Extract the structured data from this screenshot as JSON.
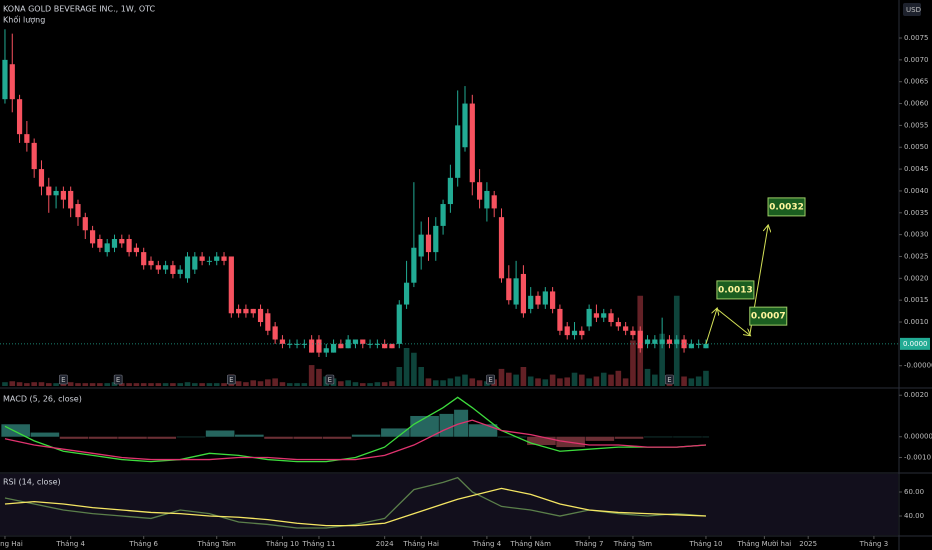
{
  "chart_data": [
    {
      "type": "candlestick",
      "title": "KONA GOLD BEVERAGE INC., 1W, OTC",
      "volume_label": "Khối lượng",
      "currency": "USD",
      "up_color": "#22ab94",
      "down_color": "#f7525f",
      "xlim": [
        -0.68,
        122.3
      ],
      "ylim": [
        -0.00051,
        0.00837
      ],
      "yticks": [
        0.0075,
        {
          "value": 0.007,
          "label": "0.0070"
        },
        0.0065,
        {
          "value": 0.006,
          "label": "0.0060"
        },
        0.0055,
        {
          "value": 0.005,
          "label": "0.0050"
        },
        0.0045,
        {
          "value": 0.004,
          "label": "0.0040"
        },
        0.0035,
        {
          "value": 0.003,
          "label": "0.0030"
        },
        0.0025,
        {
          "value": 0.002,
          "label": "0.0020"
        },
        0.0015,
        {
          "value": 0.001,
          "label": "0.0010"
        },
        {
          "value": 0,
          "label": "-0.000000"
        }
      ],
      "xticks": [
        {
          "value": 0,
          "label": "Tháng Hai"
        },
        {
          "value": 9,
          "label": "Tháng 4"
        },
        {
          "value": 19,
          "label": "Tháng 6"
        },
        {
          "value": 29,
          "label": "Tháng Tám"
        },
        {
          "value": 38,
          "label": "Tháng 10"
        },
        {
          "value": 43,
          "label": "Tháng 11"
        },
        {
          "value": 52,
          "label": "2024"
        },
        {
          "value": 57,
          "label": "Tháng Hai"
        },
        {
          "value": 66,
          "label": "Tháng 4"
        },
        {
          "value": 72,
          "label": "Tháng Năm"
        },
        {
          "value": 80,
          "label": "Tháng 7"
        },
        {
          "value": 86,
          "label": "Tháng Tám"
        },
        {
          "value": 96,
          "label": "Tháng 10"
        },
        {
          "value": 104,
          "label": "Tháng Mười hai"
        },
        {
          "value": 110,
          "label": "2025"
        },
        {
          "value": 119,
          "label": "Tháng 3"
        }
      ],
      "ohlc": [
        [
          0.0061,
          0.0077,
          0.006,
          0.007
        ],
        [
          0.0069,
          0.0076,
          0.0058,
          0.0061
        ],
        [
          0.0061,
          0.0062,
          0.0051,
          0.0053
        ],
        [
          0.0053,
          0.0056,
          0.0049,
          0.0051
        ],
        [
          0.0051,
          0.0052,
          0.0043,
          0.0045
        ],
        [
          0.0045,
          0.0047,
          0.0039,
          0.0041
        ],
        [
          0.0041,
          0.0043,
          0.0035,
          0.0039
        ],
        [
          0.0039,
          0.0041,
          0.0036,
          0.004
        ],
        [
          0.004,
          0.0041,
          0.0036,
          0.0038
        ],
        [
          0.004,
          0.0041,
          0.0034,
          0.0036
        ],
        [
          0.0037,
          0.0038,
          0.0032,
          0.0034
        ],
        [
          0.0034,
          0.0035,
          0.0029,
          0.0031
        ],
        [
          0.0031,
          0.0032,
          0.0027,
          0.0028
        ],
        [
          0.0029,
          0.003,
          0.0026,
          0.0027
        ],
        [
          0.0026,
          0.0029,
          0.0025,
          0.0028
        ],
        [
          0.0027,
          0.003,
          0.0026,
          0.0029
        ],
        [
          0.0029,
          0.003,
          0.0027,
          0.0028
        ],
        [
          0.0029,
          0.003,
          0.0025,
          0.0026
        ],
        [
          0.0027,
          0.0028,
          0.0025,
          0.0026
        ],
        [
          0.0026,
          0.0027,
          0.0022,
          0.0023
        ],
        [
          0.0024,
          0.0025,
          0.0022,
          0.0023
        ],
        [
          0.0023,
          0.0024,
          0.0021,
          0.0022
        ],
        [
          0.0022,
          0.0024,
          0.0021,
          0.0023
        ],
        [
          0.0023,
          0.0024,
          0.002,
          0.0021
        ],
        [
          0.0021,
          0.0023,
          0.002,
          0.0022
        ],
        [
          0.002,
          0.0026,
          0.0019,
          0.0025
        ],
        [
          0.0022,
          0.0026,
          0.0021,
          0.0025
        ],
        [
          0.0025,
          0.0026,
          0.0023,
          0.0024
        ],
        [
          0.0024,
          0.0025,
          0.0023,
          0.0024
        ],
        [
          0.0024,
          0.0026,
          0.0023,
          0.0025
        ],
        [
          0.0025,
          0.0026,
          0.0023,
          0.0024
        ],
        [
          0.0025,
          0.0025,
          0.0011,
          0.0012
        ],
        [
          0.0013,
          0.0014,
          0.0011,
          0.0012
        ],
        [
          0.0013,
          0.0014,
          0.0011,
          0.0012
        ],
        [
          0.0013,
          0.0013,
          0.0011,
          0.0012
        ],
        [
          0.0013,
          0.0014,
          0.0009,
          0.001
        ],
        [
          0.0012,
          0.0013,
          0.0007,
          0.0008
        ],
        [
          0.0009,
          0.001,
          0.0005,
          0.0006
        ],
        [
          0.0006,
          0.0007,
          0.0004,
          0.0005
        ],
        [
          0.0005,
          0.0006,
          0.0004,
          0.0005
        ],
        [
          0.0005,
          0.0006,
          0.0004,
          0.0005
        ],
        [
          0.0005,
          0.0006,
          0.0004,
          0.0005
        ],
        [
          0.0006,
          0.0007,
          0.0003,
          0.0003
        ],
        [
          0.0006,
          0.0007,
          0.0002,
          0.0003
        ],
        [
          0.0003,
          0.0005,
          0.0002,
          0.0004
        ],
        [
          0.0003,
          0.0006,
          0.0003,
          0.0005
        ],
        [
          0.0005,
          0.0006,
          0.0004,
          0.0004
        ],
        [
          0.0004,
          0.0007,
          0.0004,
          0.0006
        ],
        [
          0.0005,
          0.0006,
          0.0004,
          0.0006
        ],
        [
          0.0006,
          0.0006,
          0.0004,
          0.0005
        ],
        [
          0.0005,
          0.0006,
          0.0004,
          0.0005
        ],
        [
          0.0005,
          0.0006,
          0.0004,
          0.0005
        ],
        [
          0.0005,
          0.0006,
          0.0004,
          0.0004
        ],
        [
          0.0005,
          0.0005,
          0.0004,
          0.0004
        ],
        [
          0.0005,
          0.0015,
          0.0004,
          0.0014
        ],
        [
          0.0014,
          0.0024,
          0.0013,
          0.0019
        ],
        [
          0.0019,
          0.0042,
          0.0018,
          0.0027
        ],
        [
          0.0025,
          0.0033,
          0.0022,
          0.003
        ],
        [
          0.003,
          0.0034,
          0.0024,
          0.0026
        ],
        [
          0.0026,
          0.0034,
          0.0024,
          0.0032
        ],
        [
          0.0032,
          0.0038,
          0.003,
          0.0037
        ],
        [
          0.0037,
          0.0046,
          0.0035,
          0.0043
        ],
        [
          0.0043,
          0.0063,
          0.0041,
          0.0055
        ],
        [
          0.005,
          0.0064,
          0.0049,
          0.006
        ],
        [
          0.006,
          0.0062,
          0.0039,
          0.0042
        ],
        [
          0.0042,
          0.0045,
          0.0036,
          0.0038
        ],
        [
          0.0036,
          0.0042,
          0.0033,
          0.004
        ],
        [
          0.0039,
          0.004,
          0.0034,
          0.0036
        ],
        [
          0.0034,
          0.0036,
          0.0019,
          0.002
        ],
        [
          0.002,
          0.0023,
          0.0014,
          0.0015
        ],
        [
          0.0014,
          0.0024,
          0.0013,
          0.002
        ],
        [
          0.0021,
          0.0023,
          0.0011,
          0.0012
        ],
        [
          0.0013,
          0.0018,
          0.0012,
          0.0016
        ],
        [
          0.0016,
          0.0017,
          0.0013,
          0.0014
        ],
        [
          0.0014,
          0.0018,
          0.0013,
          0.0017
        ],
        [
          0.0017,
          0.0018,
          0.0012,
          0.0013
        ],
        [
          0.0013,
          0.0014,
          0.0007,
          0.0008
        ],
        [
          0.0009,
          0.001,
          0.0006,
          0.0007
        ],
        [
          0.0007,
          0.001,
          0.0006,
          0.0008
        ],
        [
          0.0008,
          0.0009,
          0.0006,
          0.0007
        ],
        [
          0.0009,
          0.0014,
          0.0008,
          0.0013
        ],
        [
          0.0012,
          0.0014,
          0.001,
          0.0011
        ],
        [
          0.0011,
          0.0013,
          0.001,
          0.0012
        ],
        [
          0.0012,
          0.0013,
          0.0009,
          0.001
        ],
        [
          0.001,
          0.0011,
          0.0008,
          0.0009
        ],
        [
          0.0009,
          0.001,
          0.0007,
          0.0008
        ],
        [
          0.0008,
          0.0009,
          0.0006,
          0.0007
        ],
        [
          0.0008,
          0.0009,
          0.0003,
          0.0004
        ],
        [
          0.0005,
          0.0007,
          0.0004,
          0.0006
        ],
        [
          0.0005,
          0.0007,
          0.0004,
          0.0006
        ],
        [
          0.0005,
          0.0011,
          0.0004,
          0.0006
        ],
        [
          0.0006,
          0.0007,
          0.0004,
          0.0005
        ],
        [
          0.0005,
          0.0007,
          0.0004,
          0.0006
        ],
        [
          0.0006,
          0.0007,
          0.0003,
          0.0004
        ],
        [
          0.0004,
          0.0006,
          0.0004,
          0.0005
        ],
        [
          0.0005,
          0.0006,
          0.0004,
          0.0005
        ],
        [
          0.0004,
          0.0006,
          0.0004,
          0.0005
        ]
      ],
      "volume": [
        4,
        5,
        4,
        3,
        4,
        4,
        3,
        3,
        3,
        4,
        3,
        3,
        3,
        3,
        3,
        4,
        3,
        3,
        3,
        3,
        3,
        3,
        3,
        3,
        3,
        4,
        3,
        3,
        3,
        3,
        3,
        12,
        5,
        4,
        6,
        5,
        7,
        8,
        4,
        3,
        3,
        3,
        22,
        18,
        10,
        8,
        5,
        6,
        4,
        3,
        3,
        4,
        4,
        5,
        20,
        40,
        35,
        20,
        8,
        6,
        6,
        8,
        10,
        12,
        8,
        6,
        5,
        7,
        18,
        14,
        12,
        20,
        10,
        8,
        7,
        12,
        8,
        9,
        14,
        12,
        8,
        10,
        14,
        12,
        16,
        8,
        48,
        95,
        18,
        12,
        55,
        8,
        95,
        10,
        8,
        10,
        16
      ],
      "volume_lim": [
        0,
        100
      ],
      "earnings": {
        "x": [
          8,
          15.5,
          31,
          44.5,
          66.5,
          91
        ],
        "labels": [
          "E",
          "E",
          "E",
          "E",
          "E",
          "E"
        ]
      },
      "last_price_label": "0.0000",
      "projection": {
        "color": "#d4e157",
        "x": [
          96,
          97.5,
          102,
          104.5
        ],
        "values": [
          0.0005,
          0.0013,
          0.0007,
          0.0032
        ]
      }
    },
    {
      "type": "indicator",
      "title": "MACD (5, 26, close)",
      "ylim": [
        -0.0017,
        0.0023
      ],
      "yticks": [
        {
          "value": 0.002,
          "label": "0.0020"
        },
        {
          "value": 0,
          "label": "0.000000"
        },
        {
          "value": -0.001,
          "label": "-0.0010"
        }
      ],
      "x": [
        0,
        4,
        8,
        12,
        16,
        20,
        24,
        28,
        32,
        36,
        40,
        44,
        48,
        52,
        56,
        60,
        62,
        64,
        68,
        72,
        76,
        80,
        84,
        88,
        92,
        96
      ],
      "series": [
        {
          "type": "bar",
          "colors": [
            "#26665f",
            "#6b2f35"
          ],
          "values": [
            0.0006,
            0.0002,
            -0.0001,
            -0.0001,
            -0.0001,
            -0.0001,
            0,
            0.0003,
            0.0001,
            -0.0001,
            -0.0001,
            -0.0001,
            0.0001,
            0.0004,
            0.001,
            0.0011,
            0.0013,
            0.0006,
            0,
            -0.0004,
            -0.0005,
            -0.0002,
            -0.0001,
            0,
            0,
            0
          ]
        },
        {
          "type": "line",
          "color": "#3ddc3d",
          "values": [
            0.0005,
            -0.0002,
            -0.0007,
            -0.0009,
            -0.0011,
            -0.0012,
            -0.0011,
            -0.0008,
            -0.0009,
            -0.0011,
            -0.0012,
            -0.0012,
            -0.001,
            -0.0005,
            0.0006,
            0.0014,
            0.0019,
            0.0014,
            0.0003,
            -0.0003,
            -0.0007,
            -0.0006,
            -0.0005,
            -0.0005,
            -0.0005,
            -0.0004
          ]
        },
        {
          "type": "line",
          "color": "#e0336f",
          "values": [
            -0.0001,
            -0.0004,
            -0.0006,
            -0.0008,
            -0.001,
            -0.0011,
            -0.0011,
            -0.0011,
            -0.001,
            -0.001,
            -0.0011,
            -0.0011,
            -0.0011,
            -0.0009,
            -0.0004,
            0.0003,
            0.0006,
            0.0008,
            0.0003,
            0.0001,
            -0.0002,
            -0.0004,
            -0.0004,
            -0.0005,
            -0.0005,
            -0.0004
          ]
        }
      ]
    },
    {
      "type": "indicator",
      "title": "RSI (14, close)",
      "ylim": [
        24.2,
        75
      ],
      "yticks": [
        {
          "value": 60,
          "label": "60.00"
        },
        {
          "value": 40,
          "label": "40.00"
        }
      ],
      "x": [
        0,
        4,
        8,
        12,
        16,
        20,
        24,
        28,
        32,
        36,
        40,
        44,
        48,
        52,
        56,
        60,
        62,
        64,
        68,
        72,
        76,
        80,
        84,
        88,
        92,
        96
      ],
      "series": [
        {
          "type": "line",
          "color": "#5b7f4a",
          "values": [
            55,
            50,
            45,
            42,
            40,
            38,
            45,
            42,
            35,
            33,
            30,
            30,
            33,
            38,
            62,
            68,
            72,
            60,
            48,
            45,
            40,
            45,
            42,
            40,
            42,
            40
          ]
        },
        {
          "type": "line",
          "color": "#f5e663",
          "values": [
            50,
            52,
            50,
            47,
            45,
            43,
            42,
            40,
            39,
            37,
            34,
            32,
            32,
            34,
            42,
            50,
            54,
            57,
            63,
            58,
            50,
            45,
            43,
            42,
            41,
            40
          ]
        }
      ]
    }
  ]
}
